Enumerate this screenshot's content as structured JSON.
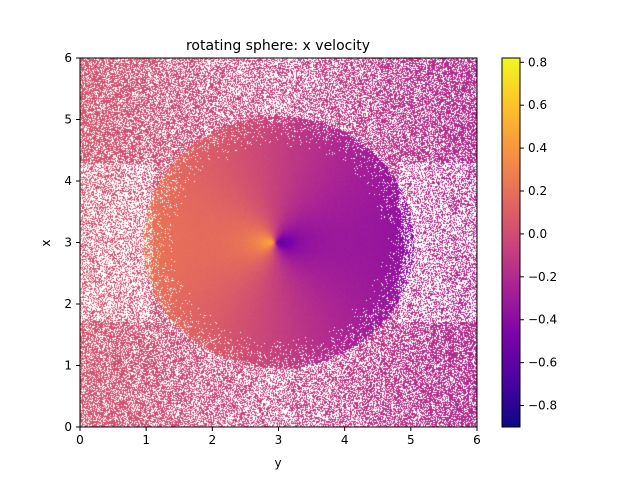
{
  "chart_data": {
    "type": "heatmap",
    "title": "rotating sphere: x velocity",
    "xlabel": "y",
    "ylabel": "x",
    "xlim": [
      0,
      6
    ],
    "ylim": [
      0,
      6
    ],
    "xticks": [
      0,
      1,
      2,
      3,
      4,
      5,
      6
    ],
    "yticks": [
      0,
      1,
      2,
      3,
      4,
      5,
      6
    ],
    "colormap": "plasma",
    "colorbar": {
      "vmin": -0.9,
      "vmax": 0.82,
      "ticks": [
        -0.8,
        -0.6,
        -0.4,
        -0.2,
        0.0,
        0.2,
        0.4,
        0.6,
        0.8
      ],
      "tick_labels": [
        "−0.8",
        "−0.6",
        "−0.4",
        "−0.2",
        "0.0",
        "0.2",
        "0.4",
        "0.6",
        "0.8"
      ]
    },
    "field": {
      "description_free": true,
      "sphere_center": [
        3.0,
        3.0
      ],
      "dense_radius": 2.0,
      "positive_lobe_peak": {
        "y": 2.7,
        "x": 3.0,
        "value": 0.82
      },
      "negative_lobe_peak": {
        "y": 3.2,
        "x": 3.0,
        "value": -0.9
      },
      "background_left_value": 0.05,
      "background_right_value": -0.2
    },
    "grid": false,
    "legend": "none"
  }
}
